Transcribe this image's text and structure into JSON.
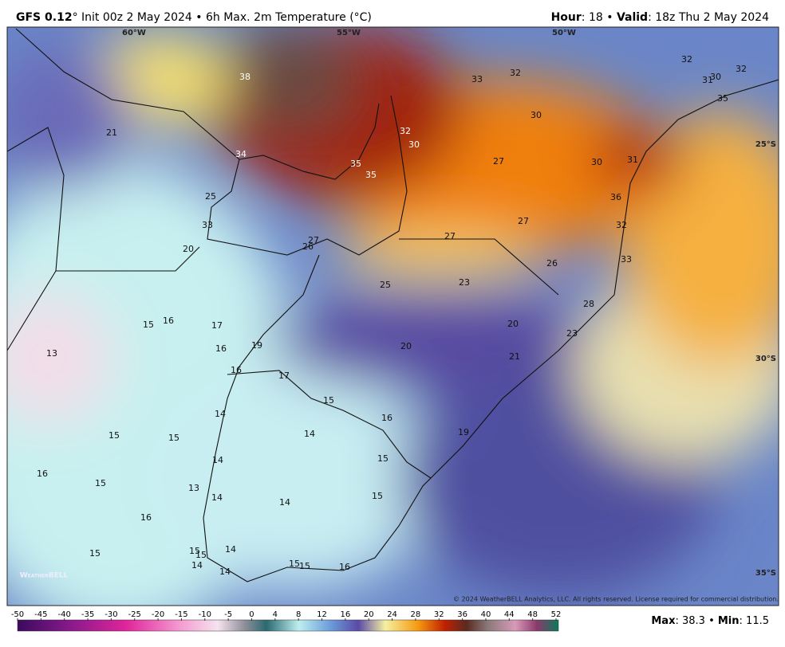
{
  "header": {
    "model": "GFS 0.12",
    "rest": "° Init 00z 2 May 2024 • 6h Max. 2m Temperature (°C)",
    "hour_label": "Hour",
    "hour_text": ": 18 • ",
    "valid_label": "Valid",
    "valid_text": ": 18z Thu 2 May 2024"
  },
  "map": {
    "lon_labels": [
      "60°W",
      "55°W",
      "50°W"
    ],
    "lat_labels": [
      "25°S",
      "30°S",
      "35°S"
    ],
    "labels": [
      38,
      33,
      32,
      32,
      30,
      31,
      32,
      35,
      30,
      21,
      32,
      30,
      34,
      35,
      35,
      27,
      30,
      31,
      36,
      25,
      27,
      32,
      33,
      27,
      27,
      26,
      20,
      26,
      33,
      25,
      23,
      28,
      15,
      16,
      17,
      20,
      23,
      13,
      16,
      19,
      20,
      21,
      16,
      17,
      15,
      16,
      14,
      19,
      15,
      15,
      14,
      14,
      15,
      16,
      15,
      13,
      14,
      14,
      15,
      16,
      15,
      14,
      15,
      15,
      14,
      14,
      15,
      15,
      16
    ],
    "copyright": "© 2024 WeatherBELL Analytics, LLC. All rights reserved. License required for commercial distribution.",
    "logo": "WeatherBELL"
  },
  "colorbar": {
    "ticks": [
      -50,
      -45,
      -40,
      -35,
      -30,
      -25,
      -20,
      -15,
      -10,
      -5,
      0,
      4,
      8,
      12,
      16,
      20,
      24,
      28,
      32,
      36,
      40,
      44,
      48,
      52
    ]
  },
  "footer": {
    "max_label": "Max",
    "max_text": ": 38.3 • ",
    "min_label": "Min",
    "min_text": ": 11.5"
  }
}
